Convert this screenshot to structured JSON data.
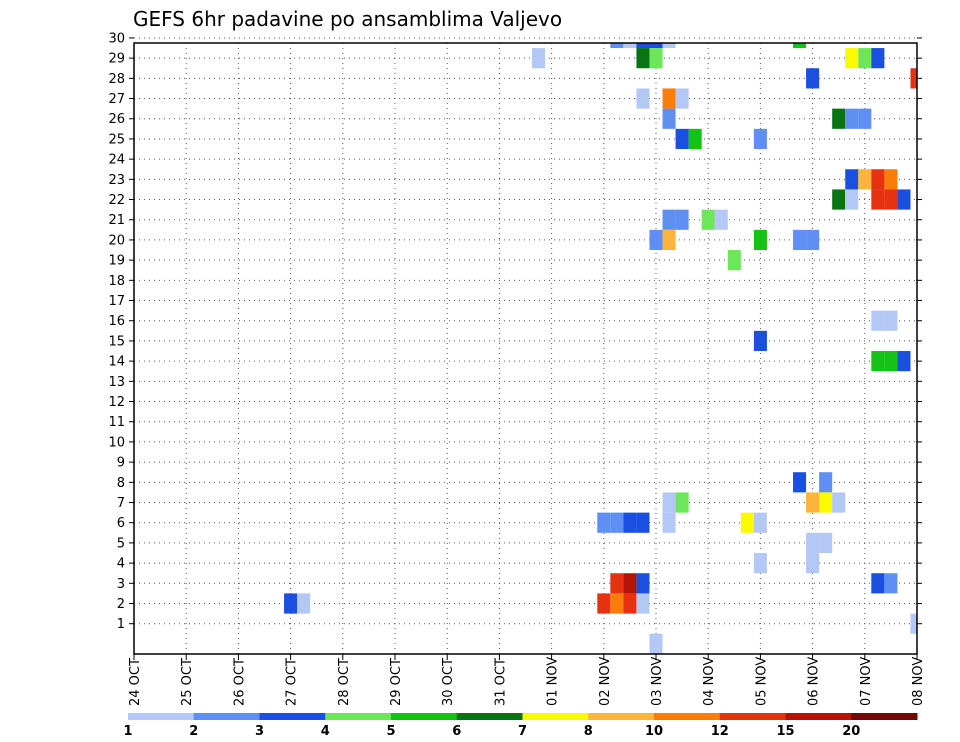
{
  "colors": {
    "c1": "#b4c8f5",
    "c2": "#5f8ff2",
    "c3": "#1a4fe0",
    "c4": "#6ee65a",
    "c5": "#16c216",
    "c6": "#0a7414",
    "c7": "#fafa00",
    "c8": "#fcb43c",
    "c10": "#fa7d0a",
    "c12": "#e63210",
    "c15": "#b41408",
    "c20": "#700a08"
  },
  "chart_data": {
    "type": "heatmap",
    "title": "GEFS 6hr padavine po ansamblima Valjevo",
    "xlabel": "",
    "ylabel": "",
    "x_ticks": [
      "24 OCT",
      "25 OCT",
      "26 OCT",
      "27 OCT",
      "28 OCT",
      "29 OCT",
      "30 OCT",
      "31 OCT",
      "01 NOV",
      "02 NOV",
      "03 NOV",
      "04 NOV",
      "05 NOV",
      "06 NOV",
      "07 NOV",
      "08 NOV"
    ],
    "y_ticks": [
      "1",
      "2",
      "3",
      "4",
      "5",
      "6",
      "7",
      "8",
      "9",
      "10",
      "11",
      "12",
      "13",
      "14",
      "15",
      "16",
      "17",
      "18",
      "19",
      "20",
      "21",
      "22",
      "23",
      "24",
      "25",
      "26",
      "27",
      "28",
      "29",
      "30"
    ],
    "xlim_days": [
      0,
      15
    ],
    "ylim": [
      0,
      30
    ],
    "grid": true,
    "colorbar": {
      "labels": [
        "1",
        "2",
        "3",
        "4",
        "5",
        "6",
        "7",
        "8",
        "10",
        "12",
        "15",
        "20"
      ],
      "colors": [
        "c1",
        "c2",
        "c3",
        "c4",
        "c5",
        "c6",
        "c7",
        "c8",
        "c10",
        "c12",
        "c15",
        "c20"
      ]
    },
    "cells": [
      [
        "27 OCT 00z",
        2,
        "c3"
      ],
      [
        "27 OCT 06z",
        2,
        "c1"
      ],
      [
        "31 OCT 18z",
        29,
        "c1"
      ],
      [
        "02 NOV 06z",
        30,
        "c2"
      ],
      [
        "02 NOV 12z",
        30,
        "c1"
      ],
      [
        "02 NOV 18z",
        30,
        "c3"
      ],
      [
        "03 NOV 00z",
        30,
        "c3"
      ],
      [
        "03 NOV 06z",
        30,
        "c1"
      ],
      [
        "02 NOV 18z",
        29,
        "c6"
      ],
      [
        "03 NOV 00z",
        29,
        "c4"
      ],
      [
        "02 NOV 18z",
        27,
        "c1"
      ],
      [
        "03 NOV 06z",
        27,
        "c10"
      ],
      [
        "03 NOV 12z",
        27,
        "c1"
      ],
      [
        "03 NOV 06z",
        26,
        "c2"
      ],
      [
        "03 NOV 12z",
        25,
        "c3"
      ],
      [
        "03 NOV 18z",
        25,
        "c5"
      ],
      [
        "03 NOV 06z",
        21,
        "c2"
      ],
      [
        "03 NOV 12z",
        21,
        "c2"
      ],
      [
        "04 NOV 00z",
        21,
        "c4"
      ],
      [
        "04 NOV 06z",
        21,
        "c1"
      ],
      [
        "03 NOV 00z",
        20,
        "c2"
      ],
      [
        "03 NOV 06z",
        20,
        "c8"
      ],
      [
        "04 NOV 12z",
        19,
        "c4"
      ],
      [
        "02 NOV 00z",
        6,
        "c2"
      ],
      [
        "02 NOV 06z",
        6,
        "c2"
      ],
      [
        "02 NOV 12z",
        6,
        "c3"
      ],
      [
        "02 NOV 18z",
        6,
        "c3"
      ],
      [
        "03 NOV 06z",
        6,
        "c1"
      ],
      [
        "03 NOV 06z",
        7,
        "c1"
      ],
      [
        "03 NOV 12z",
        7,
        "c4"
      ],
      [
        "02 NOV 00z",
        2,
        "c12"
      ],
      [
        "02 NOV 06z",
        2,
        "c10"
      ],
      [
        "02 NOV 12z",
        2,
        "c12"
      ],
      [
        "02 NOV 18z",
        2,
        "c1"
      ],
      [
        "02 NOV 06z",
        3,
        "c12"
      ],
      [
        "02 NOV 12z",
        3,
        "c15"
      ],
      [
        "02 NOV 18z",
        3,
        "c3"
      ],
      [
        "03 NOV 00z",
        0,
        "c1"
      ],
      [
        "05 NOV 00z",
        25,
        "c2"
      ],
      [
        "05 NOV 00z",
        20,
        "c5"
      ],
      [
        "05 NOV 00z",
        15,
        "c3"
      ],
      [
        "04 NOV 18z",
        6,
        "c7"
      ],
      [
        "05 NOV 00z",
        6,
        "c1"
      ],
      [
        "05 NOV 00z",
        4,
        "c1"
      ],
      [
        "05 NOV 18z",
        30,
        "c5"
      ],
      [
        "06 NOV 00z",
        28,
        "c3"
      ],
      [
        "05 NOV 18z",
        20,
        "c2"
      ],
      [
        "06 NOV 00z",
        20,
        "c2"
      ],
      [
        "05 NOV 18z",
        8,
        "c3"
      ],
      [
        "06 NOV 06z",
        8,
        "c2"
      ],
      [
        "06 NOV 00z",
        7,
        "c8"
      ],
      [
        "06 NOV 06z",
        7,
        "c7"
      ],
      [
        "06 NOV 12z",
        7,
        "c1"
      ],
      [
        "06 NOV 00z",
        5,
        "c1"
      ],
      [
        "06 NOV 06z",
        5,
        "c1"
      ],
      [
        "06 NOV 00z",
        4,
        "c1"
      ],
      [
        "06 NOV 18z",
        29,
        "c7"
      ],
      [
        "07 NOV 00z",
        29,
        "c4"
      ],
      [
        "07 NOV 06z",
        29,
        "c3"
      ],
      [
        "06 NOV 12z",
        26,
        "c6"
      ],
      [
        "06 NOV 18z",
        26,
        "c2"
      ],
      [
        "07 NOV 00z",
        26,
        "c2"
      ],
      [
        "06 NOV 18z",
        23,
        "c3"
      ],
      [
        "07 NOV 00z",
        23,
        "c8"
      ],
      [
        "07 NOV 06z",
        23,
        "c12"
      ],
      [
        "07 NOV 12z",
        23,
        "c10"
      ],
      [
        "06 NOV 12z",
        22,
        "c6"
      ],
      [
        "06 NOV 18z",
        22,
        "c1"
      ],
      [
        "07 NOV 06z",
        22,
        "c12"
      ],
      [
        "07 NOV 12z",
        22,
        "c12"
      ],
      [
        "07 NOV 18z",
        22,
        "c3"
      ],
      [
        "07 NOV 06z",
        16,
        "c1"
      ],
      [
        "07 NOV 12z",
        16,
        "c1"
      ],
      [
        "07 NOV 06z",
        14,
        "c5"
      ],
      [
        "07 NOV 12z",
        14,
        "c5"
      ],
      [
        "07 NOV 18z",
        14,
        "c3"
      ],
      [
        "07 NOV 06z",
        3,
        "c3"
      ],
      [
        "07 NOV 12z",
        3,
        "c2"
      ],
      [
        "08 NOV 00z",
        28,
        "c12"
      ],
      [
        "08 NOV 00z",
        1,
        "c1"
      ]
    ]
  }
}
